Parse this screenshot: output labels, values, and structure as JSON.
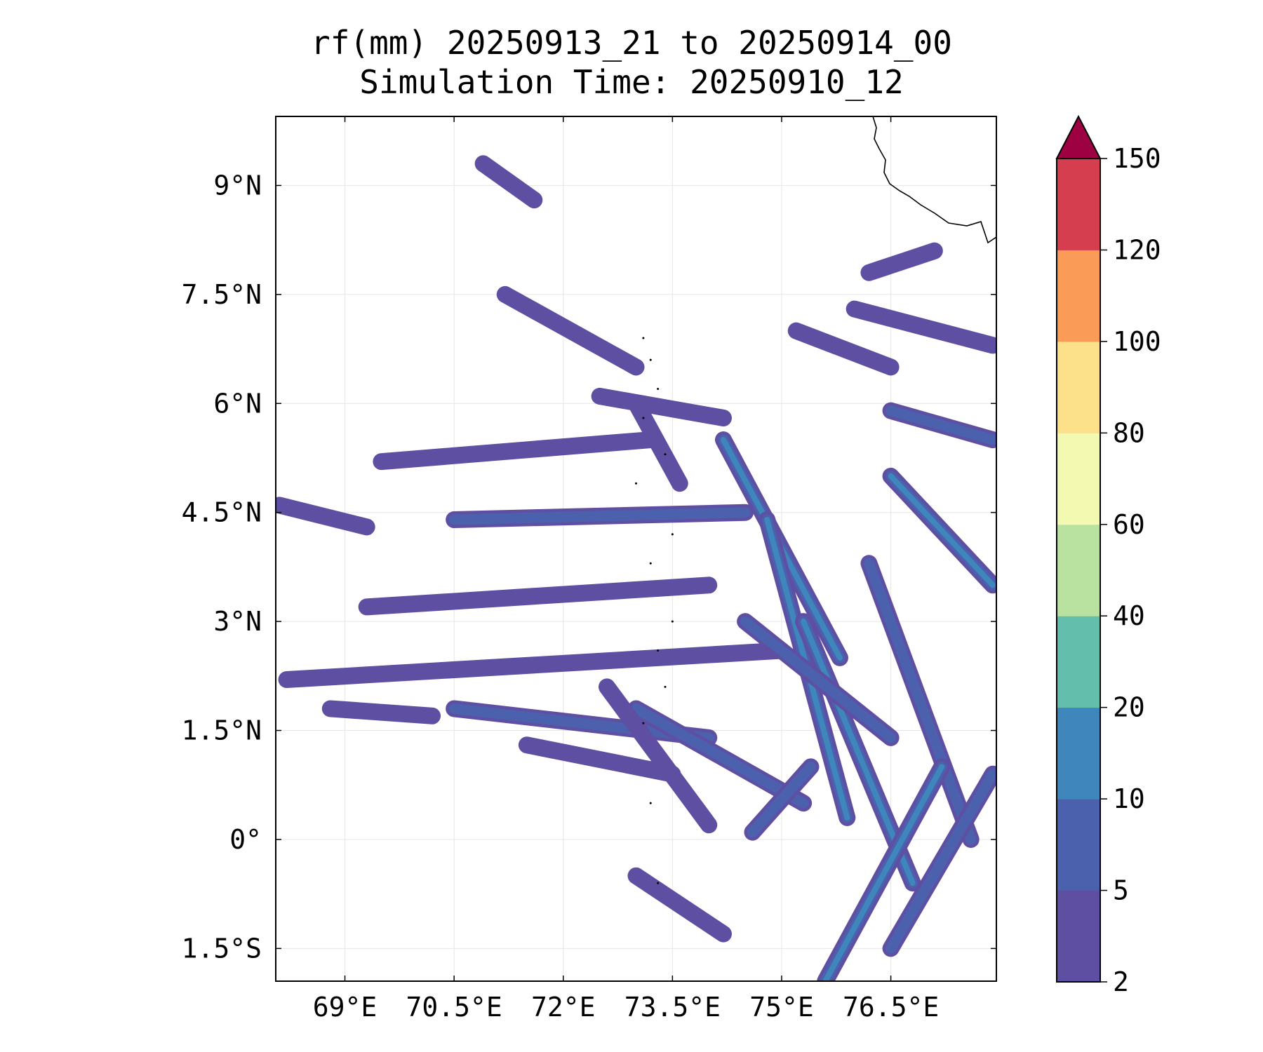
{
  "chart_data": {
    "type": "contour-map",
    "title": "rf(mm) 20250913_21 to 20250914_00",
    "subtitle": "Simulation Time: 20250910_12",
    "xlabel": "",
    "ylabel": "",
    "xlim": [
      68.05,
      77.95
    ],
    "ylim": [
      -1.95,
      9.95
    ],
    "xticks": [
      69,
      70.5,
      72,
      73.5,
      75,
      76.5
    ],
    "xtick_labels": [
      "69°E",
      "70.5°E",
      "72°E",
      "73.5°E",
      "75°E",
      "76.5°E"
    ],
    "yticks": [
      -1.5,
      0,
      1.5,
      3,
      4.5,
      6,
      7.5,
      9
    ],
    "ytick_labels": [
      "1.5°S",
      "0°",
      "1.5°N",
      "3°N",
      "4.5°N",
      "6°N",
      "7.5°N",
      "9°N"
    ],
    "grid": true,
    "colorbar": {
      "position": "right",
      "extend": "max",
      "levels": [
        2,
        5,
        10,
        20,
        40,
        60,
        80,
        100,
        120,
        150
      ],
      "tick_labels": [
        "2",
        "5",
        "10",
        "20",
        "40",
        "60",
        "80",
        "100",
        "120",
        "150"
      ],
      "colors": [
        "#5e4fa2",
        "#4b61ad",
        "#3f86bc",
        "#63bfab",
        "#b9e2a0",
        "#f3f9b0",
        "#fce08a",
        "#fa9b58",
        "#d53e4f",
        "#9e0142"
      ]
    },
    "rain_bands": [
      {
        "x1": 73.2,
        "y1": 5.5,
        "x2": 69.5,
        "y2": 5.2,
        "level": 1
      },
      {
        "x1": 74.5,
        "y1": 4.5,
        "x2": 70.5,
        "y2": 4.4,
        "level": 2
      },
      {
        "x1": 74.0,
        "y1": 3.5,
        "x2": 69.3,
        "y2": 3.2,
        "level": 1
      },
      {
        "x1": 75.0,
        "y1": 2.6,
        "x2": 68.2,
        "y2": 2.2,
        "level": 1
      },
      {
        "x1": 74.0,
        "y1": 1.4,
        "x2": 70.5,
        "y2": 1.8,
        "level": 2
      },
      {
        "x1": 73.5,
        "y1": 0.9,
        "x2": 71.5,
        "y2": 1.3,
        "level": 1
      },
      {
        "x1": 73.0,
        "y1": 6.5,
        "x2": 71.2,
        "y2": 7.5,
        "level": 1
      },
      {
        "x1": 74.2,
        "y1": 5.8,
        "x2": 72.5,
        "y2": 6.1,
        "level": 1
      },
      {
        "x1": 75.8,
        "y1": 2.5,
        "x2": 74.2,
        "y2": 5.5,
        "level": 3
      },
      {
        "x1": 75.9,
        "y1": 0.3,
        "x2": 74.8,
        "y2": 4.4,
        "level": 3
      },
      {
        "x1": 76.8,
        "y1": -0.6,
        "x2": 75.3,
        "y2": 3.0,
        "level": 3
      },
      {
        "x1": 77.6,
        "y1": 0.0,
        "x2": 76.2,
        "y2": 3.8,
        "level": 2
      },
      {
        "x1": 77.9,
        "y1": 3.5,
        "x2": 76.5,
        "y2": 5.0,
        "level": 3
      },
      {
        "x1": 77.9,
        "y1": 5.5,
        "x2": 76.5,
        "y2": 5.9,
        "level": 2
      },
      {
        "x1": 76.5,
        "y1": 1.4,
        "x2": 74.5,
        "y2": 3.0,
        "level": 2
      },
      {
        "x1": 75.3,
        "y1": 0.5,
        "x2": 73.0,
        "y2": 1.8,
        "level": 2
      },
      {
        "x1": 77.9,
        "y1": 6.8,
        "x2": 76.0,
        "y2": 7.3,
        "level": 1
      },
      {
        "x1": 76.5,
        "y1": 6.5,
        "x2": 75.2,
        "y2": 7.0,
        "level": 1
      },
      {
        "x1": 75.6,
        "y1": -1.95,
        "x2": 77.2,
        "y2": 1.0,
        "level": 3
      },
      {
        "x1": 76.5,
        "y1": -1.5,
        "x2": 77.9,
        "y2": 0.9,
        "level": 2
      },
      {
        "x1": 74.0,
        "y1": 0.2,
        "x2": 72.6,
        "y2": 2.1,
        "level": 1
      },
      {
        "x1": 73.6,
        "y1": 4.9,
        "x2": 73.0,
        "y2": 6.0,
        "level": 1
      },
      {
        "x1": 71.6,
        "y1": 8.8,
        "x2": 70.9,
        "y2": 9.3,
        "level": 1
      },
      {
        "x1": 77.1,
        "y1": 8.1,
        "x2": 76.2,
        "y2": 7.8,
        "level": 1
      },
      {
        "x1": 70.2,
        "y1": 1.7,
        "x2": 68.8,
        "y2": 1.8,
        "level": 1
      },
      {
        "x1": 69.3,
        "y1": 4.3,
        "x2": 68.1,
        "y2": 4.6,
        "level": 1
      },
      {
        "x1": 74.2,
        "y1": -1.3,
        "x2": 73.0,
        "y2": -0.5,
        "level": 1
      },
      {
        "x1": 75.4,
        "y1": 1.0,
        "x2": 74.6,
        "y2": 0.1,
        "level": 2
      }
    ]
  }
}
